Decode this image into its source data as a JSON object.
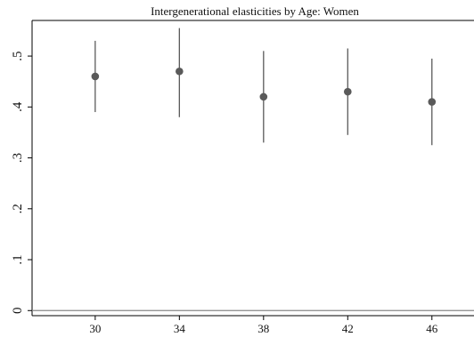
{
  "chart_data": {
    "type": "scatter",
    "title": "Intergenerational elasticities by Age: Women",
    "xlabel": "",
    "ylabel": "",
    "x": [
      30,
      34,
      38,
      42,
      46
    ],
    "series": [
      {
        "values": [
          0.46,
          0.47,
          0.42,
          0.43,
          0.41
        ],
        "ci_low": [
          0.39,
          0.38,
          0.33,
          0.345,
          0.325
        ],
        "ci_high": [
          0.53,
          0.555,
          0.51,
          0.515,
          0.495
        ]
      }
    ],
    "x_ticks": [
      30,
      34,
      38,
      42,
      46
    ],
    "x_tick_labels": [
      "30",
      "34",
      "38",
      "42",
      "46"
    ],
    "y_ticks": [
      0,
      0.1,
      0.2,
      0.3,
      0.4,
      0.5
    ],
    "y_tick_labels": [
      "0",
      ".1",
      ".2",
      ".3",
      ".4",
      ".5"
    ],
    "xlim": [
      27,
      48
    ],
    "ylim": [
      -0.01,
      0.57
    ],
    "reference_line_y": 0,
    "grid": false,
    "legend": "none",
    "colors": {
      "marker": "#5a5a5a",
      "ci": "#5a5a5a",
      "axis": "#000000",
      "refline": "#888888"
    }
  }
}
